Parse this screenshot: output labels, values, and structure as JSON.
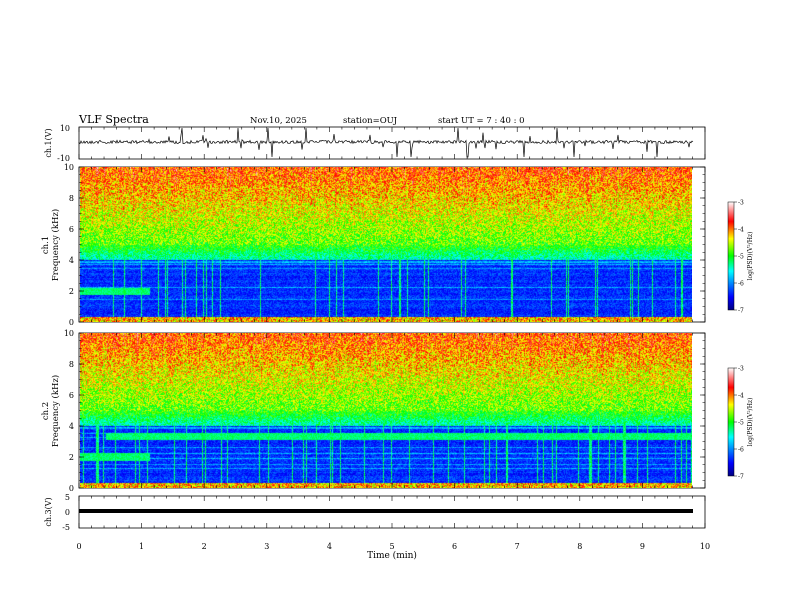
{
  "header": {
    "title": "VLF Spectra",
    "date": "Nov.10, 2025",
    "station": "station=OUJ",
    "start_ut": "start  UT =   7 : 40 : 0"
  },
  "chart_data": [
    {
      "type": "line",
      "panel": "waveform-ch1",
      "ylabel": "ch.1(V)",
      "ylim": [
        -10,
        10
      ],
      "yticks": [
        10,
        -10
      ],
      "xlim": [
        0,
        10
      ],
      "trace_color": "#000000"
    },
    {
      "type": "heatmap",
      "panel": "spectrogram-ch1",
      "ylabel_top": "ch.1",
      "ylabel": "Frequency  (kHz)",
      "ylim": [
        0,
        10
      ],
      "yticks": [
        0,
        2,
        4,
        6,
        8,
        10
      ],
      "xlim": [
        0,
        9.8
      ],
      "colorbar": {
        "label": "log(PSD)(V²/Hz)",
        "range": [
          -7,
          -3
        ],
        "ticks": [
          "-3",
          "-4",
          "-5",
          "-6",
          "-7"
        ]
      }
    },
    {
      "type": "heatmap",
      "panel": "spectrogram-ch2",
      "ylabel_top": "ch.2",
      "ylabel": "Frequency  (kHz)",
      "ylim": [
        0,
        10
      ],
      "yticks": [
        0,
        2,
        4,
        6,
        8,
        10
      ],
      "xlim": [
        0,
        9.8
      ],
      "colorbar": {
        "label": "log(PSD)(V²/Hz)",
        "range": [
          -7,
          -3
        ],
        "ticks": [
          "-3",
          "-4",
          "-5",
          "-6",
          "-7"
        ]
      }
    },
    {
      "type": "line",
      "panel": "waveform-ch3",
      "ylabel": "ch.3(V)",
      "ylim": [
        -5,
        5
      ],
      "yticks": [
        5,
        0,
        -5
      ],
      "xlim": [
        0,
        10
      ],
      "trace_color": "#000000"
    }
  ],
  "x_axis": {
    "label": "Time  (min)",
    "range": [
      0,
      10
    ],
    "ticks": [
      "0",
      "1",
      "2",
      "3",
      "4",
      "5",
      "6",
      "7",
      "8",
      "9",
      "10"
    ]
  }
}
